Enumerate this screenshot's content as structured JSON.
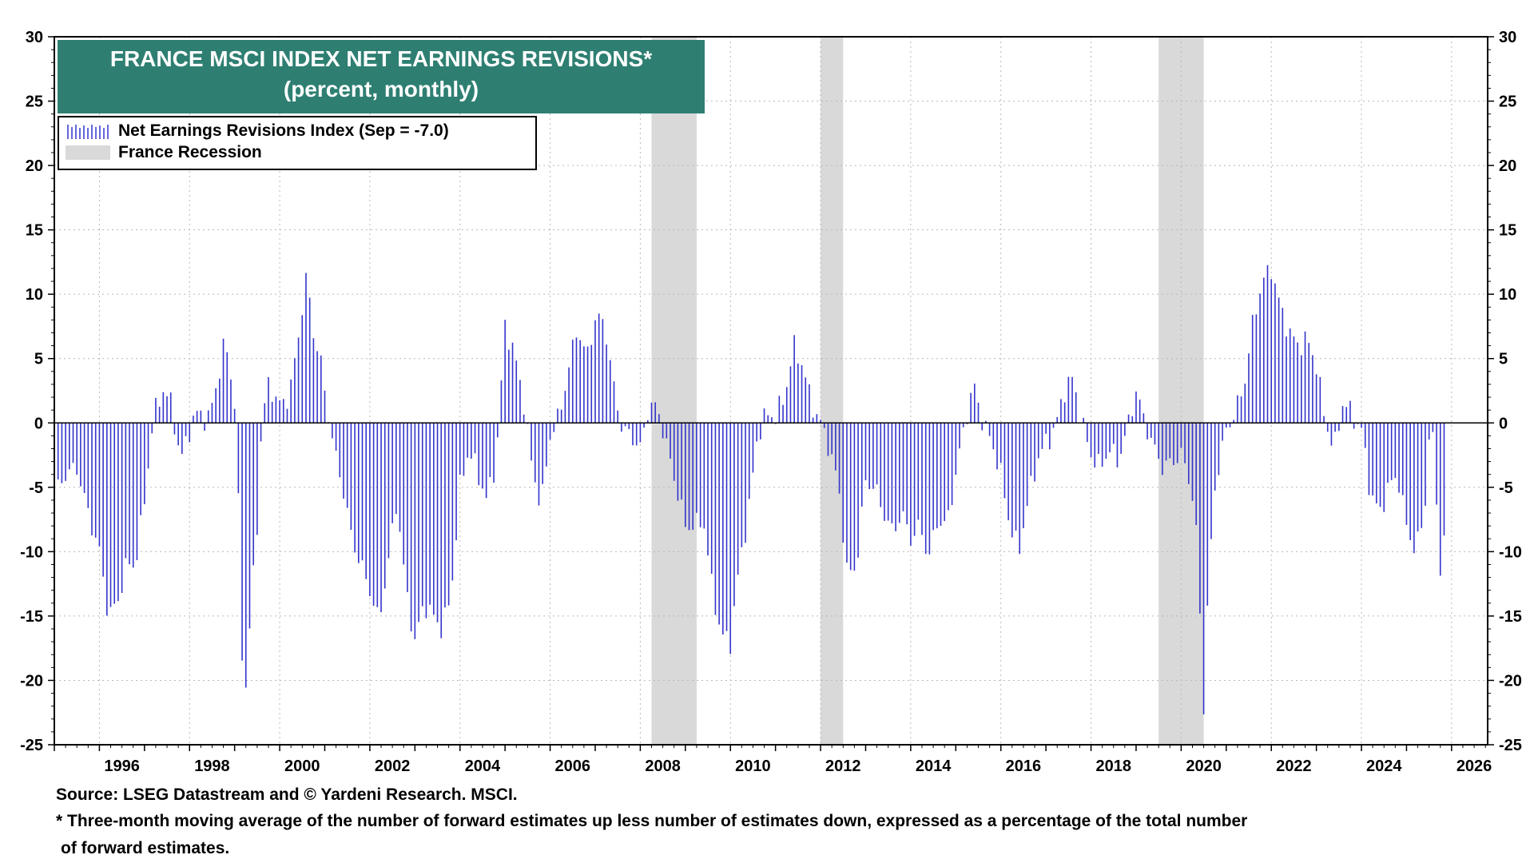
{
  "chart_data": {
    "type": "bar",
    "title": "FRANCE MSCI INDEX NET EARNINGS REVISIONS*",
    "subtitle": "(percent, monthly)",
    "legend": [
      {
        "label": "Net Earnings Revisions Index (Sep  = -7.0)",
        "type": "bars",
        "color": "#3333cc"
      },
      {
        "label": "France Recession",
        "type": "shade",
        "color": "#d9d9d9"
      }
    ],
    "legend_position": "top-left",
    "ylim": [
      -25,
      30
    ],
    "y_ticks": [
      "30",
      "25",
      "20",
      "15",
      "10",
      "5",
      "0",
      "-5",
      "-10",
      "-15",
      "-20",
      "-25"
    ],
    "y_tick_values": [
      30,
      25,
      20,
      15,
      10,
      5,
      0,
      -5,
      -10,
      -15,
      -20,
      -25
    ],
    "xlim": [
      1995.0,
      2026.8
    ],
    "x_ticks": [
      "1996",
      "1998",
      "2000",
      "2002",
      "2004",
      "2006",
      "2008",
      "2010",
      "2012",
      "2014",
      "2016",
      "2018",
      "2020",
      "2022",
      "2024",
      "2026"
    ],
    "x_tick_values": [
      1996,
      1998,
      2000,
      2002,
      2004,
      2006,
      2008,
      2010,
      2012,
      2014,
      2016,
      2018,
      2020,
      2022,
      2024,
      2026
    ],
    "grid": true,
    "recessions": [
      [
        2008.25,
        2009.25
      ],
      [
        2012.0,
        2012.5
      ],
      [
        2019.5,
        2020.5
      ]
    ],
    "series": [
      {
        "name": "Net Earnings Revisions Index (Sep  = -7.0)",
        "color": "#3333cc",
        "anchors": [
          [
            1995.0,
            -5.5
          ],
          [
            1995.25,
            -4
          ],
          [
            1995.5,
            -3.5
          ],
          [
            1995.75,
            -7
          ],
          [
            1996.0,
            -10
          ],
          [
            1996.2,
            -15
          ],
          [
            1996.4,
            -14
          ],
          [
            1996.6,
            -11
          ],
          [
            1996.8,
            -11
          ],
          [
            1997.0,
            -6
          ],
          [
            1997.2,
            0.5
          ],
          [
            1997.4,
            2.6
          ],
          [
            1997.6,
            1.5
          ],
          [
            1997.8,
            -3
          ],
          [
            1998.0,
            -0.5
          ],
          [
            1998.2,
            1
          ],
          [
            1998.4,
            0
          ],
          [
            1998.6,
            3
          ],
          [
            1998.8,
            6.5
          ],
          [
            1999.0,
            1.5
          ],
          [
            1999.1,
            -8
          ],
          [
            1999.2,
            -23
          ],
          [
            1999.35,
            -15
          ],
          [
            1999.5,
            -8
          ],
          [
            1999.6,
            0
          ],
          [
            1999.75,
            3
          ],
          [
            2000.0,
            1.4
          ],
          [
            2000.2,
            2
          ],
          [
            2000.35,
            5
          ],
          [
            2000.5,
            9
          ],
          [
            2000.6,
            11.5
          ],
          [
            2000.75,
            7
          ],
          [
            2000.9,
            5
          ],
          [
            2001.0,
            2.5
          ],
          [
            2001.2,
            -2
          ],
          [
            2001.4,
            -5
          ],
          [
            2001.6,
            -9
          ],
          [
            2001.8,
            -11
          ],
          [
            2002.0,
            -13
          ],
          [
            2002.2,
            -15.5
          ],
          [
            2002.4,
            -11
          ],
          [
            2002.6,
            -6
          ],
          [
            2002.8,
            -13
          ],
          [
            2003.0,
            -17
          ],
          [
            2003.2,
            -14
          ],
          [
            2003.4,
            -15
          ],
          [
            2003.6,
            -16
          ],
          [
            2003.8,
            -13.5
          ],
          [
            2004.0,
            -5
          ],
          [
            2004.2,
            -2
          ],
          [
            2004.4,
            -4
          ],
          [
            2004.6,
            -6
          ],
          [
            2004.8,
            -3
          ],
          [
            2005.0,
            7.5
          ],
          [
            2005.2,
            5.5
          ],
          [
            2005.4,
            2
          ],
          [
            2005.6,
            -3.5
          ],
          [
            2005.8,
            -6.5
          ],
          [
            2006.0,
            -1
          ],
          [
            2006.2,
            0.5
          ],
          [
            2006.4,
            4
          ],
          [
            2006.6,
            7.5
          ],
          [
            2006.8,
            5
          ],
          [
            2007.0,
            8
          ],
          [
            2007.2,
            8
          ],
          [
            2007.4,
            3
          ],
          [
            2007.6,
            -0.5
          ],
          [
            2007.8,
            -1
          ],
          [
            2008.0,
            -2
          ],
          [
            2008.2,
            1.5
          ],
          [
            2008.4,
            1
          ],
          [
            2008.6,
            -2
          ],
          [
            2008.8,
            -5
          ],
          [
            2009.0,
            -8
          ],
          [
            2009.2,
            -8
          ],
          [
            2009.4,
            -7.5
          ],
          [
            2009.6,
            -13
          ],
          [
            2009.8,
            -16.5
          ],
          [
            2010.0,
            -17
          ],
          [
            2010.2,
            -11
          ],
          [
            2010.4,
            -7
          ],
          [
            2010.6,
            -1
          ],
          [
            2010.8,
            0.7
          ],
          [
            2011.0,
            0.5
          ],
          [
            2011.2,
            2
          ],
          [
            2011.4,
            6
          ],
          [
            2011.6,
            4.5
          ],
          [
            2011.8,
            1.5
          ],
          [
            2012.0,
            0
          ],
          [
            2012.2,
            -2
          ],
          [
            2012.4,
            -5
          ],
          [
            2012.6,
            -12
          ],
          [
            2012.8,
            -11
          ],
          [
            2013.0,
            -4.5
          ],
          [
            2013.2,
            -5
          ],
          [
            2013.4,
            -7
          ],
          [
            2013.6,
            -8.5
          ],
          [
            2013.8,
            -7
          ],
          [
            2014.0,
            -9
          ],
          [
            2014.2,
            -8
          ],
          [
            2014.4,
            -10.5
          ],
          [
            2014.6,
            -7.5
          ],
          [
            2014.8,
            -8
          ],
          [
            2015.0,
            -4
          ],
          [
            2015.2,
            0
          ],
          [
            2015.4,
            3
          ],
          [
            2015.6,
            0
          ],
          [
            2015.8,
            -1.5
          ],
          [
            2016.0,
            -4
          ],
          [
            2016.2,
            -8
          ],
          [
            2016.4,
            -10
          ],
          [
            2016.6,
            -6
          ],
          [
            2016.8,
            -3
          ],
          [
            2017.0,
            -1.5
          ],
          [
            2017.2,
            -0.5
          ],
          [
            2017.4,
            2.5
          ],
          [
            2017.6,
            3.5
          ],
          [
            2017.8,
            0
          ],
          [
            2018.0,
            -2.5
          ],
          [
            2018.2,
            -3.5
          ],
          [
            2018.4,
            -2
          ],
          [
            2018.6,
            -3
          ],
          [
            2018.8,
            -0.5
          ],
          [
            2019.0,
            2.5
          ],
          [
            2019.2,
            0
          ],
          [
            2019.4,
            -2
          ],
          [
            2019.6,
            -3.5
          ],
          [
            2019.8,
            -3
          ],
          [
            2020.0,
            -2.5
          ],
          [
            2020.2,
            -4.5
          ],
          [
            2020.35,
            -9
          ],
          [
            2020.5,
            -22
          ],
          [
            2020.6,
            -13
          ],
          [
            2020.75,
            -5
          ],
          [
            2021.0,
            -0.5
          ],
          [
            2021.2,
            0.8
          ],
          [
            2021.4,
            3
          ],
          [
            2021.6,
            8
          ],
          [
            2021.8,
            11
          ],
          [
            2022.0,
            12
          ],
          [
            2022.2,
            9
          ],
          [
            2022.4,
            7
          ],
          [
            2022.6,
            6
          ],
          [
            2022.8,
            6.5
          ],
          [
            2023.0,
            4.5
          ],
          [
            2023.2,
            0
          ],
          [
            2023.4,
            -2
          ],
          [
            2023.6,
            1.8
          ],
          [
            2023.8,
            0.5
          ],
          [
            2024.0,
            -0.5
          ],
          [
            2024.2,
            -5.5
          ],
          [
            2024.4,
            -7
          ],
          [
            2024.6,
            -5
          ],
          [
            2024.8,
            -4
          ],
          [
            2025.0,
            -8
          ],
          [
            2025.2,
            -10
          ],
          [
            2025.4,
            -7
          ],
          [
            2025.5,
            -1.2
          ],
          [
            2025.6,
            -1.5
          ],
          [
            2025.75,
            -11.5
          ],
          [
            2025.9,
            -7
          ]
        ]
      }
    ]
  },
  "footer": {
    "source": "Source: LSEG Datastream and © Yardeni Research. MSCI.",
    "note_line1": "* Three-month moving average of the number of forward estimates up less number of estimates down, expressed as a percentage of the total number",
    "note_line2": "of forward estimates."
  }
}
